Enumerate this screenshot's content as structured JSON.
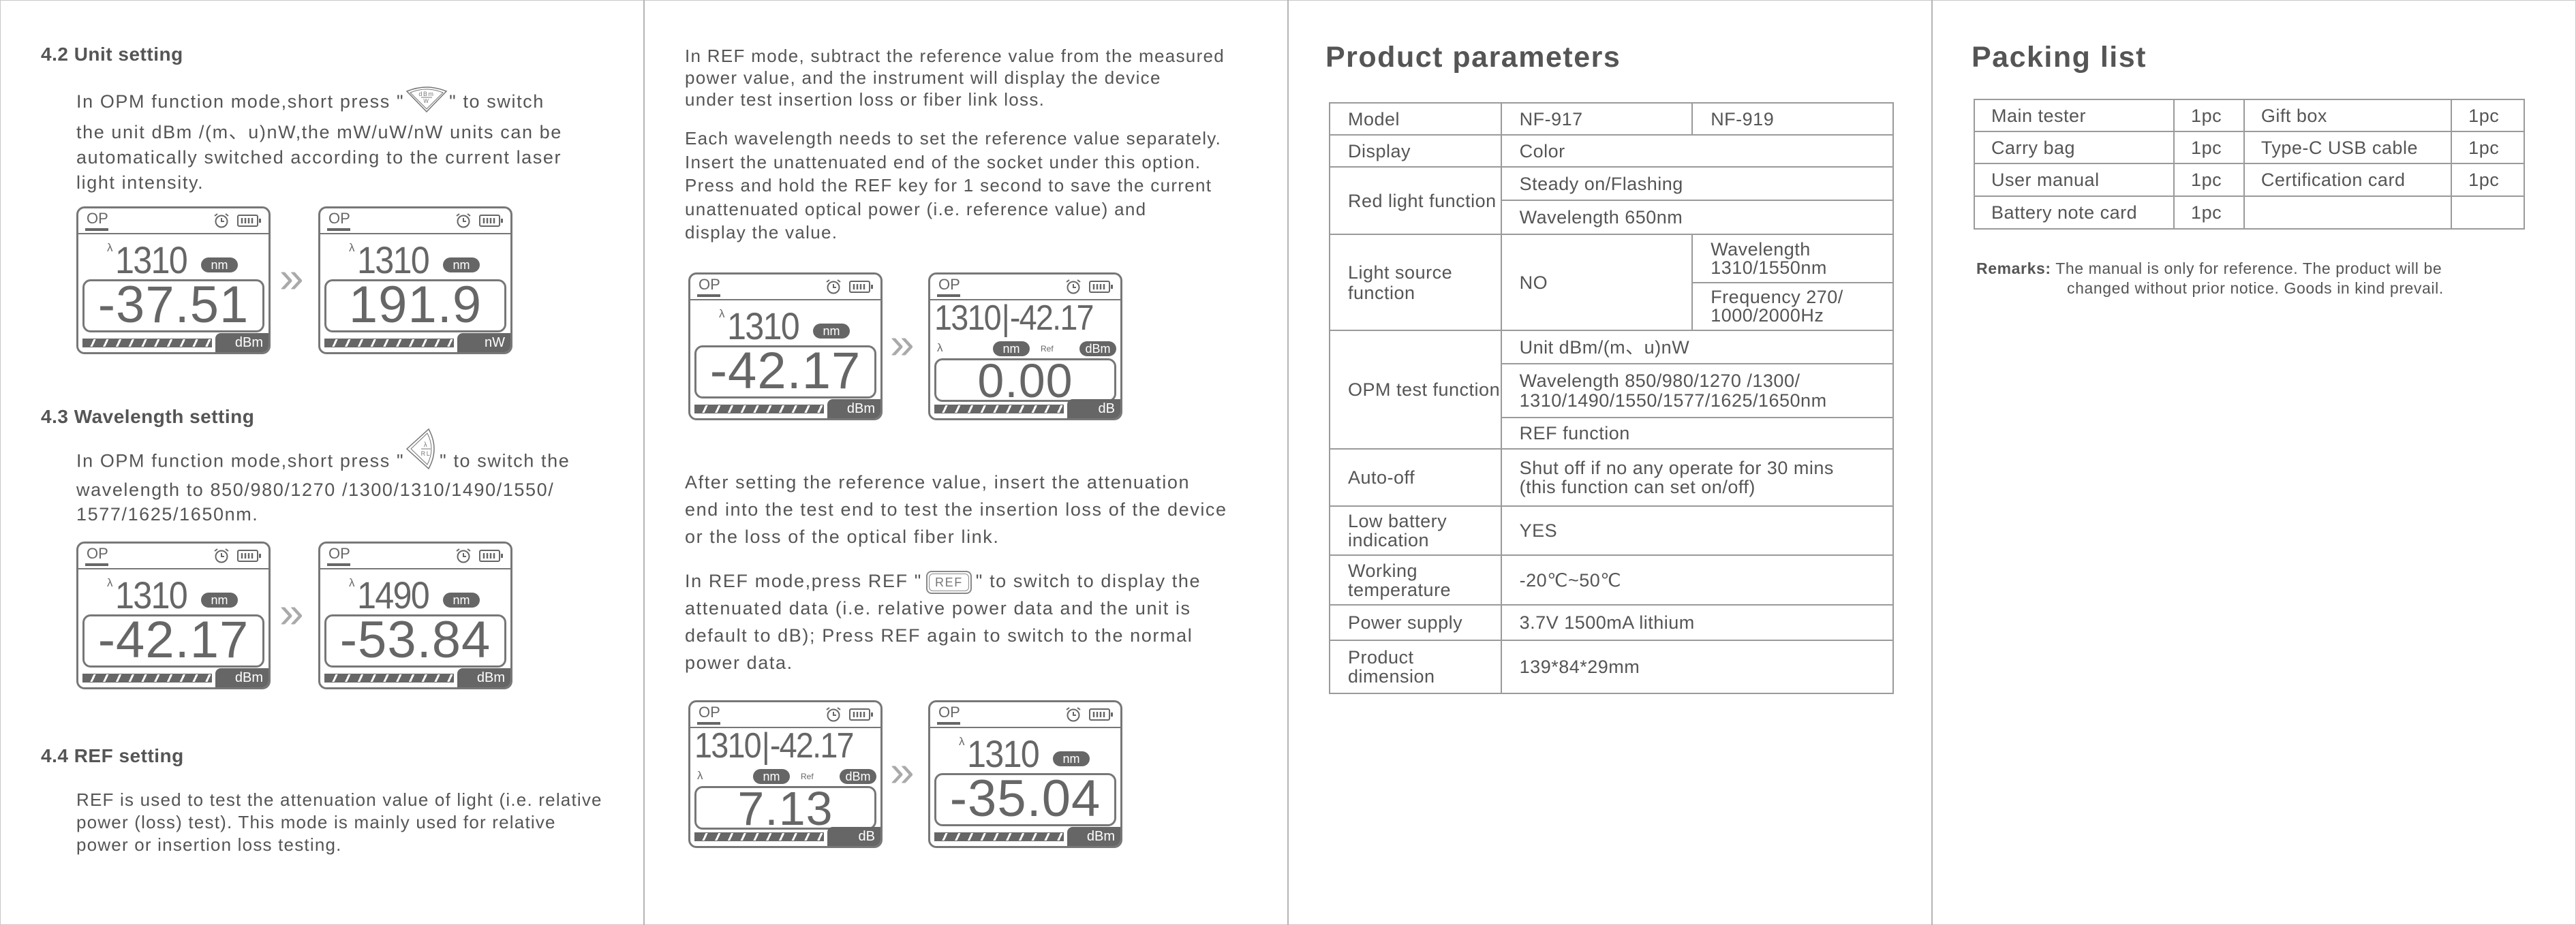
{
  "lcd_labels": {
    "op": "OP",
    "lambda": "λ",
    "nm": "nm",
    "ref": "Ref",
    "separator": "|"
  },
  "panel1": {
    "unit_setting": {
      "title": "4.2 Unit setting",
      "line1_before": "In OPM function mode,short press \"",
      "icon": {
        "name": "dbm-w-key-icon",
        "top": "dBm",
        "bottom": "W"
      },
      "line1_after": "\"  to switch",
      "lines": [
        "the unit dBm /(m、u)nW,the mW/uW/nW units can be",
        "automatically switched according to the current laser",
        "light intensity."
      ],
      "screens": [
        {
          "type": "normal",
          "wavelength": "1310",
          "value": "-37.51",
          "unit": "dBm"
        },
        {
          "type": "normal",
          "wavelength": "1310",
          "value": "191.9",
          "unit": "nW"
        }
      ]
    },
    "wavelength_setting": {
      "title": "4.3 Wavelength setting",
      "line1_before": "In OPM function mode,short press \"",
      "icon": {
        "name": "lambda-rl-key-icon",
        "top": "λ",
        "bottom": "RL"
      },
      "line1_after": "\" to switch the",
      "lines": [
        "wavelength to 850/980/1270 /1300/1310/1490/1550/",
        "1577/1625/1650nm."
      ],
      "screens": [
        {
          "type": "normal",
          "wavelength": "1310",
          "value": "-42.17",
          "unit": "dBm"
        },
        {
          "type": "normal",
          "wavelength": "1490",
          "value": "-53.84",
          "unit": "dBm"
        }
      ]
    },
    "ref_setting": {
      "title": "4.4 REF setting",
      "lines": [
        "REF is used to test the attenuation value of light (i.e. relative",
        "power (loss) test). This mode is mainly used for relative",
        "power or insertion loss testing."
      ]
    }
  },
  "panel2": {
    "para1": [
      "In REF mode, subtract the reference value from the measured",
      "power value, and the instrument will display the device",
      "under test insertion loss or fiber link loss."
    ],
    "para2": [
      "Each wavelength needs to set the reference value separately.",
      "Insert the unattenuated end of the socket under this option.",
      "Press and hold the REF key for 1 second to save the current",
      "unattenuated optical power (i.e. reference value) and",
      "display the value."
    ],
    "screens_a": [
      {
        "type": "normal",
        "wavelength": "1310",
        "value": "-42.17",
        "unit": "dBm"
      },
      {
        "type": "ref",
        "wavelength": "1310",
        "ref_value": "-42.17",
        "ref_unit": "dBm",
        "value": "0.00",
        "unit": "dB"
      }
    ],
    "para3": [
      "After setting the reference value, insert the attenuation",
      "end into the test end to test the insertion loss of the device",
      "or the loss of the optical fiber link."
    ],
    "para4_line1_before": "In REF mode,press REF \"",
    "ref_key": "REF",
    "para4_line1_after": "\" to switch to display the",
    "para4": [
      "attenuated data (i.e. relative power data and the unit is",
      "default to dB); Press REF again to switch to the normal",
      "power data."
    ],
    "screens_b": [
      {
        "type": "ref",
        "wavelength": "1310",
        "ref_value": "-42.17",
        "ref_unit": "dBm",
        "value": "7.13",
        "unit": "dB"
      },
      {
        "type": "normal",
        "wavelength": "1310",
        "value": "-35.04",
        "unit": "dBm"
      }
    ]
  },
  "product_parameters": {
    "title": "Product parameters",
    "model_label": "Model",
    "model_a": "NF-917",
    "model_b": "NF-919",
    "display_label": "Display",
    "display_value": "Color",
    "red_label": "Red light function",
    "red_1": "Steady on/Flashing",
    "red_2": "Wavelength 650nm",
    "ls_label": "Light source function",
    "ls_a": "NO",
    "ls_b1": "Wavelength 1310/1550nm",
    "ls_b2": "Frequency 270/ 1000/2000Hz",
    "opm_label": "OPM test function",
    "opm_1": "Unit dBm/(m、u)nW",
    "opm_2": "Wavelength 850/980/1270 /1300/ 1310/1490/1550/1577/1625/1650nm",
    "opm_3": "REF function",
    "auto_label": "Auto-off",
    "auto_value": "Shut off if no any operate for 30 mins (this function can set on/off)",
    "lowbat_label": "Low battery indication",
    "lowbat_value": "YES",
    "temp_label": "Working temperature",
    "temp_value": "-20℃~50℃",
    "power_label": "Power supply",
    "power_value": "3.7V 1500mA lithium",
    "dim_label": "Product dimension",
    "dim_value": "139*84*29mm"
  },
  "packing_list": {
    "title": "Packing list",
    "rows": [
      [
        "Main tester",
        "1pc",
        "Gift box",
        "1pc"
      ],
      [
        "Carry bag",
        "1pc",
        "Type-C USB cable",
        "1pc"
      ],
      [
        "User manual",
        "1pc",
        "Certification card",
        "1pc"
      ],
      [
        "Battery note card",
        "1pc",
        "",
        ""
      ]
    ],
    "remarks_label": "Remarks:",
    "remarks_line1": "The manual is only for reference. The product will be",
    "remarks_line2": "changed without prior notice. Goods in kind prevail."
  }
}
